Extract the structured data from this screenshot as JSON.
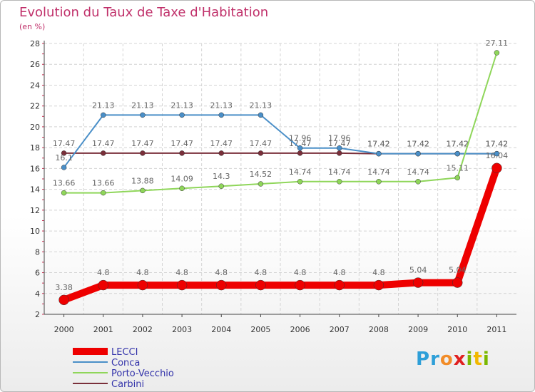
{
  "title": "Evolution du Taux de Taxe d'Habitation",
  "subtitle": "(en %)",
  "brand": {
    "letters": [
      "P",
      "r",
      "o",
      "x",
      "i",
      "t",
      "i"
    ],
    "colors": [
      "#2e9fd8",
      "#2e9fd8",
      "#f28c28",
      "#e02020",
      "#7ab800",
      "#f2b800",
      "#7ab800"
    ]
  },
  "chart_data": {
    "type": "line",
    "title": "Evolution du Taux de Taxe d'Habitation",
    "ylabel": "(en %)",
    "xlabel": "",
    "ylim": [
      2,
      28
    ],
    "yticks": [
      2,
      4,
      6,
      8,
      10,
      12,
      14,
      16,
      18,
      20,
      22,
      24,
      26,
      28
    ],
    "categories": [
      "2000",
      "2001",
      "2002",
      "2003",
      "2004",
      "2005",
      "2006",
      "2007",
      "2008",
      "2009",
      "2010",
      "2011"
    ],
    "grid": true,
    "legend_position": "bottom-left",
    "series": [
      {
        "name": "Carbini",
        "color": "#7a2f3a",
        "values": [
          17.47,
          17.47,
          17.47,
          17.47,
          17.47,
          17.47,
          17.47,
          17.47,
          17.42,
          17.42,
          17.42,
          17.42
        ],
        "labels": [
          "17.47",
          "17.47",
          "17.47",
          "17.47",
          "17.47",
          "17.47",
          "17.47",
          "17.47",
          "17.42",
          "17.42",
          "17.42",
          "17.42"
        ]
      },
      {
        "name": "Conca",
        "color": "#4a8fc8",
        "values": [
          16.1,
          21.13,
          21.13,
          21.13,
          21.13,
          21.13,
          17.96,
          17.96,
          17.42,
          17.42,
          17.42,
          17.42
        ],
        "labels": [
          "16.1",
          "21.13",
          "21.13",
          "21.13",
          "21.13",
          "21.13",
          "17.96",
          "17.96",
          "17.42",
          "17.42",
          "17.42",
          "17.42"
        ]
      },
      {
        "name": "Porto-Vecchio",
        "color": "#8fd65a",
        "values": [
          13.66,
          13.66,
          13.88,
          14.09,
          14.3,
          14.52,
          14.74,
          14.74,
          14.74,
          14.74,
          15.11,
          27.11
        ],
        "labels": [
          "13.66",
          "13.66",
          "13.88",
          "14.09",
          "14.3",
          "14.52",
          "14.74",
          "14.74",
          "14.74",
          "14.74",
          "15.11",
          "27.11"
        ]
      },
      {
        "name": "LECCI",
        "color": "#ee0000",
        "values": [
          3.38,
          4.8,
          4.8,
          4.8,
          4.8,
          4.8,
          4.8,
          4.8,
          4.8,
          5.04,
          5.04,
          16.04
        ],
        "labels": [
          "3.38",
          "4.8",
          "4.8",
          "4.8",
          "4.8",
          "4.8",
          "4.8",
          "4.8",
          "4.8",
          "5.04",
          "5.04",
          "16.04"
        ]
      }
    ],
    "legend": [
      "LECCI",
      "Conca",
      "Porto-Vecchio",
      "Carbini"
    ]
  }
}
